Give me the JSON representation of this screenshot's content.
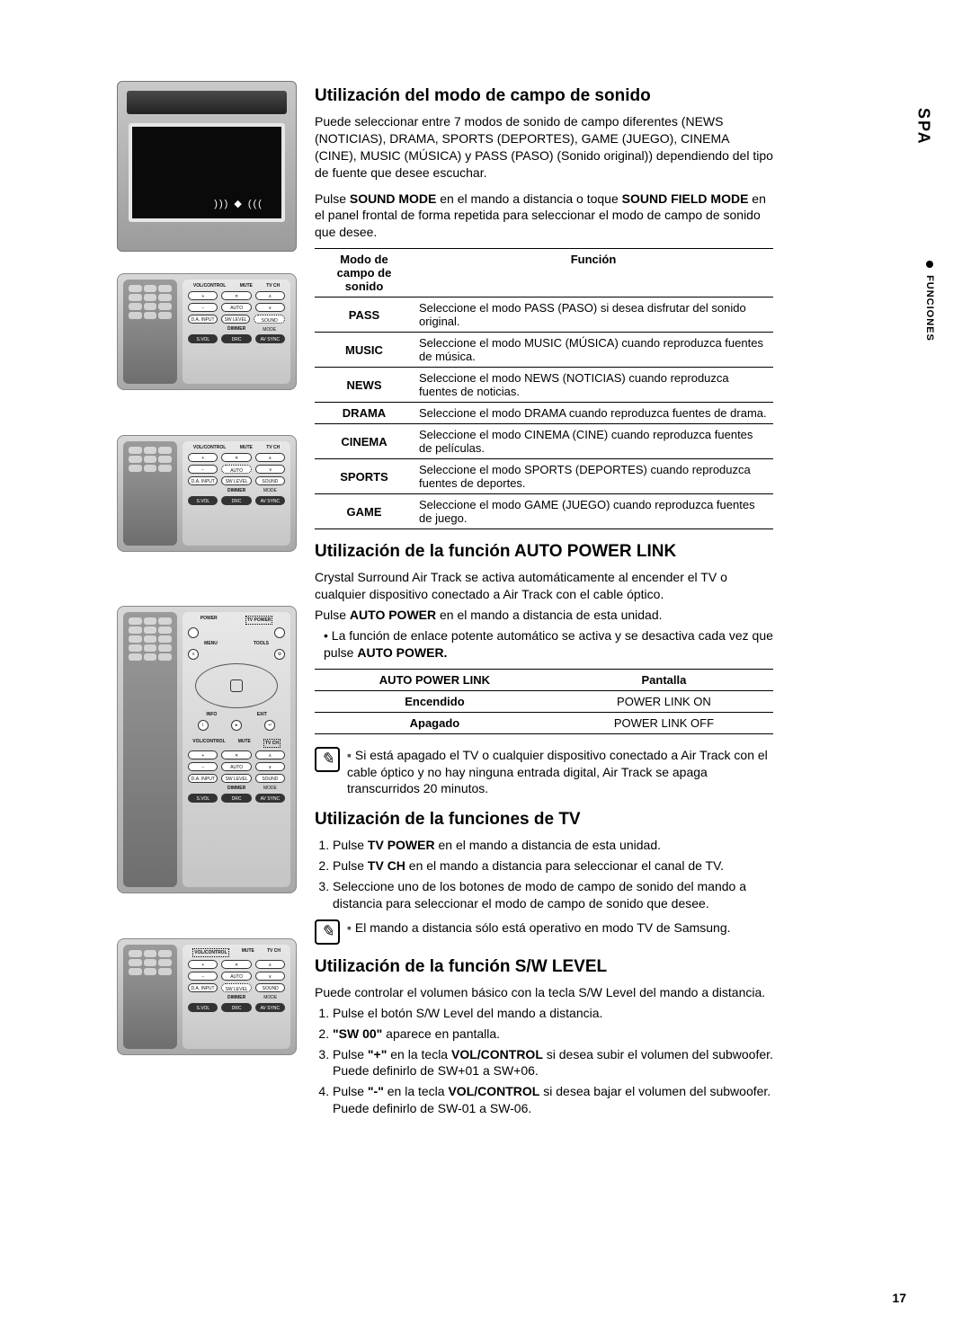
{
  "side": {
    "lang": "SPA",
    "section": "FUNCIONES"
  },
  "sec1": {
    "heading": "Utilización del modo de campo de sonido",
    "p1": "Puede seleccionar entre 7 modos de sonido de campo diferentes (NEWS (NOTICIAS), DRAMA, SPORTS (DEPORTES), GAME (JUEGO), CINEMA (CINE), MUSIC (MÚSICA) y PASS (PASO) (Sonido original)) dependiendo del tipo de fuente que desee escuchar.",
    "p2a": "Pulse ",
    "p2b": "SOUND MODE",
    "p2c": " en el mando a distancia o toque ",
    "p2d": "SOUND FIELD MODE",
    "p2e": " en el panel frontal de forma repetida para seleccionar el modo de campo de sonido que desee.",
    "th1": "Modo de campo de sonido",
    "th2": "Función",
    "rows": [
      {
        "mode": "PASS",
        "func": "Seleccione el modo PASS (PASO) si desea disfrutar del sonido original."
      },
      {
        "mode": "MUSIC",
        "func": "Seleccione el modo MUSIC (MÚSICA) cuando reproduzca fuentes de música."
      },
      {
        "mode": "NEWS",
        "func": "Seleccione el modo NEWS (NOTICIAS) cuando reproduzca fuentes de noticias."
      },
      {
        "mode": "DRAMA",
        "func": "Seleccione el modo DRAMA cuando reproduzca fuentes de drama."
      },
      {
        "mode": "CINEMA",
        "func": "Seleccione el modo CINEMA (CINE) cuando reproduzca fuentes de películas."
      },
      {
        "mode": "SPORTS",
        "func": "Seleccione el modo SPORTS (DEPORTES) cuando reproduzca fuentes de deportes."
      },
      {
        "mode": "GAME",
        "func": "Seleccione el modo GAME (JUEGO) cuando reproduzca fuentes de juego."
      }
    ]
  },
  "sec2": {
    "heading": "Utilización de la función AUTO POWER LINK",
    "p1": "Crystal Surround Air Track se activa automáticamente al encender el TV o cualquier dispositivo conectado a Air Track con el cable óptico.",
    "p2a": "Pulse ",
    "p2b": "AUTO POWER",
    "p2c": "  en el mando a distancia de esta unidad.",
    "bullet_a": "La función de enlace potente automático se activa y se desactiva cada vez que pulse ",
    "bullet_b": "AUTO POWER.",
    "th1": "AUTO POWER LINK",
    "th2": "Pantalla",
    "rows": [
      {
        "state": "Encendido",
        "display": "POWER LINK ON"
      },
      {
        "state": "Apagado",
        "display": "POWER LINK OFF"
      }
    ],
    "note": "Si está apagado el TV o cualquier dispositivo conectado a Air Track con el cable óptico y no hay ninguna entrada digital, Air Track se apaga transcurridos 20 minutos."
  },
  "sec3": {
    "heading": "Utilización de la funciones de TV",
    "li1a": "Pulse ",
    "li1b": "TV POWER",
    "li1c": " en el mando a distancia de esta unidad.",
    "li2a": "Pulse ",
    "li2b": "TV CH",
    "li2c": " en el mando a distancia para seleccionar el canal de TV.",
    "li3": "Seleccione uno de los botones de modo de campo de sonido del mando a distancia para seleccionar el modo de campo de sonido que desee.",
    "note": "El mando a distancia sólo está operativo en modo TV de Samsung."
  },
  "sec4": {
    "heading": "Utilización de la función S/W LEVEL",
    "p1": "Puede controlar el volumen básico con la tecla S/W Level del mando a distancia.",
    "li1": "Pulse el botón S/W Level del mando a distancia.",
    "li2a": "\"SW 00\"",
    "li2b": " aparece en pantalla.",
    "li3a": "Pulse ",
    "li3b": "\"+\"",
    "li3c": " en la tecla ",
    "li3d": "VOL/CONTROL",
    "li3e": " si desea subir el volumen del subwoofer. Puede definirlo de SW+01 a SW+06.",
    "li4a": "Pulse ",
    "li4b": "\"-\"",
    "li4c": " en la tecla ",
    "li4d": "VOL/CONTROL",
    "li4e": " si desea bajar el volumen del subwoofer. Puede definirlo de SW-01 a SW-06."
  },
  "pageNumber": "17",
  "remote_labels": {
    "row1": [
      "VOL/CONTROL",
      "MUTE",
      "TV CH"
    ],
    "row2": [
      "AUTO POWER"
    ],
    "row3": [
      "D.A. INPUT",
      "SW LEVEL",
      "SOUND MODE"
    ],
    "row4": [
      "DIMMER"
    ],
    "row5": [
      "S.VOL",
      "DRC",
      "AV SYNC"
    ],
    "tall": [
      "POWER",
      "TV POWER",
      "MENU",
      "TOOLS",
      "INFO",
      "EXIT"
    ]
  }
}
